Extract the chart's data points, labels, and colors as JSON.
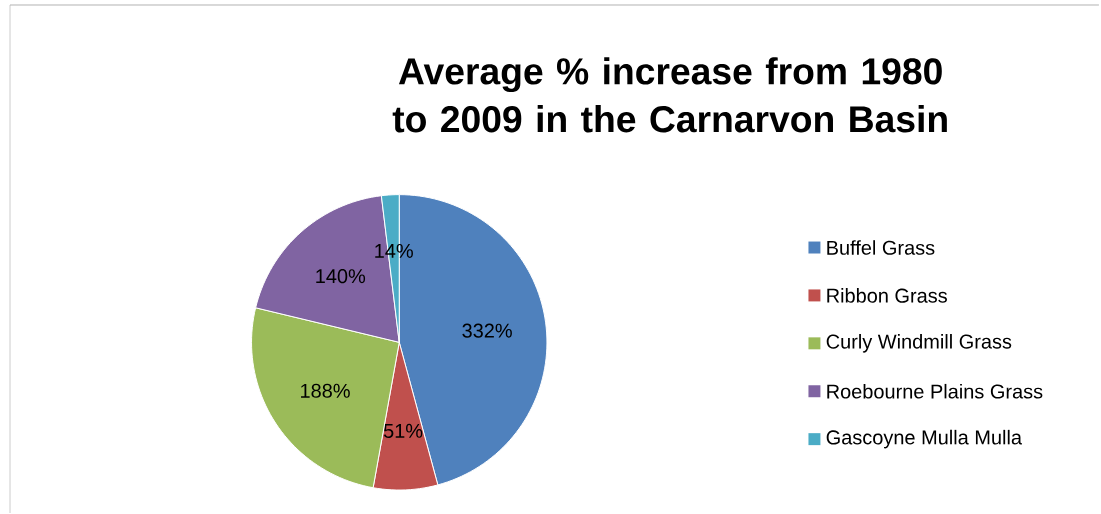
{
  "chart_data": {
    "type": "pie",
    "title": "Average % increase from 1980 to 2009 in the Carnarvon Basin",
    "categories": [
      "Buffel Grass",
      "Ribbon Grass",
      "Curly Windmill Grass",
      "Roebourne Plains Grass",
      "Gascoyne Mulla Mulla"
    ],
    "values": [
      332,
      51,
      188,
      140,
      14
    ],
    "value_labels": [
      "332%",
      "51%",
      "188%",
      "140%",
      "14%"
    ],
    "colors": [
      "#4f81bd",
      "#c0504d",
      "#9bbb59",
      "#8064a2",
      "#4bacc6"
    ],
    "legend": "right"
  }
}
